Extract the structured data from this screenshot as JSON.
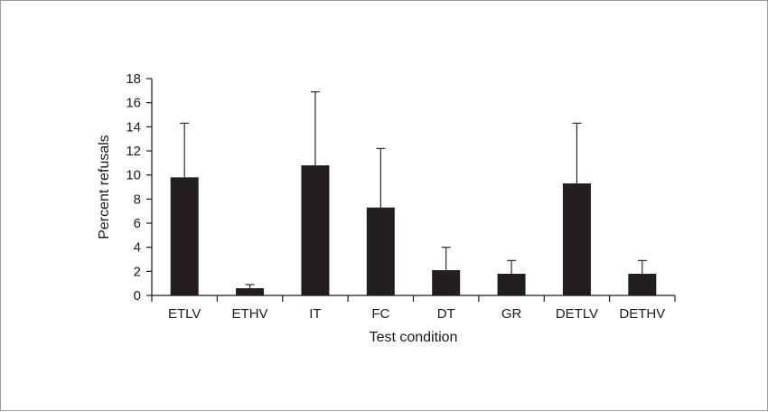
{
  "chart_data": {
    "type": "bar",
    "categories": [
      "ETLV",
      "ETHV",
      "IT",
      "FC",
      "DT",
      "GR",
      "DETLV",
      "DETHV"
    ],
    "values": [
      9.8,
      0.6,
      10.8,
      7.3,
      2.1,
      1.8,
      9.3,
      1.8
    ],
    "error_upper": [
      14.3,
      0.9,
      16.9,
      12.2,
      4.0,
      2.9,
      14.3,
      2.9
    ],
    "xlabel": "Test condition",
    "ylabel": "Percent refusals",
    "ylim": [
      0,
      18
    ],
    "yticks": [
      "0",
      "2",
      "4",
      "6",
      "8",
      "10",
      "12",
      "14",
      "16",
      "18"
    ],
    "grid": false,
    "bar_color": "#231f20"
  }
}
